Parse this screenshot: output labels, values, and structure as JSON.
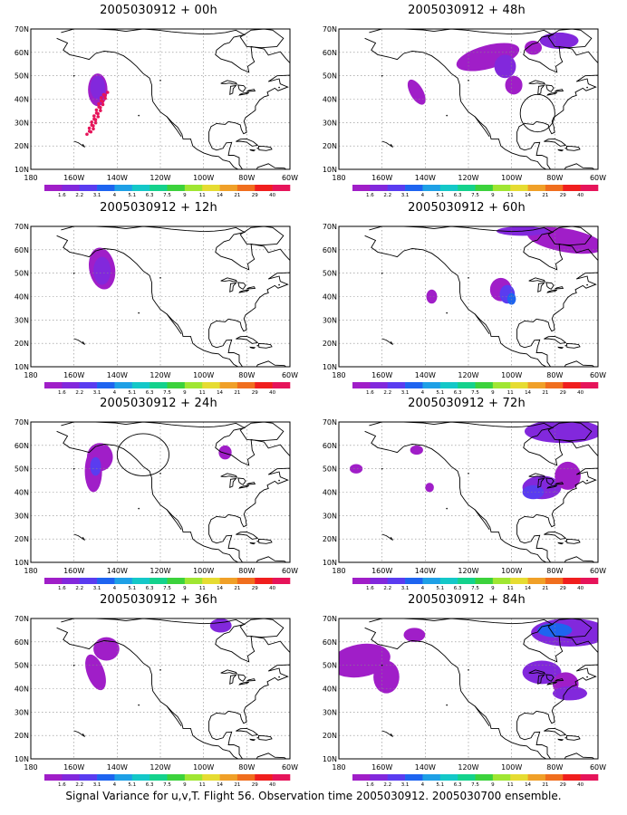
{
  "map": {
    "lat_labels": [
      "10N",
      "20N",
      "30N",
      "40N",
      "50N",
      "60N",
      "70N"
    ],
    "lon_labels": [
      "180",
      "160W",
      "140W",
      "120W",
      "100W",
      "80W",
      "60W"
    ]
  },
  "colorbar": {
    "labels": [
      "1.6",
      "2.2",
      "3.1",
      "4",
      "5.1",
      "6.3",
      "7.5",
      "9",
      "11",
      "14",
      "21",
      "29",
      "40"
    ],
    "colors": [
      "#a01ec8",
      "#8228dc",
      "#5a3cf0",
      "#1e64f0",
      "#1ea0e6",
      "#14c8c8",
      "#14d28c",
      "#3cd23c",
      "#a0e632",
      "#e6dc32",
      "#f0a028",
      "#f06e1e",
      "#f01e1e",
      "#e6145a"
    ]
  },
  "panels": [
    {
      "title": "2005030912 + 00h"
    },
    {
      "title": "2005030912 + 48h"
    },
    {
      "title": "2005030912 + 12h"
    },
    {
      "title": "2005030912 + 60h"
    },
    {
      "title": "2005030912 + 24h"
    },
    {
      "title": "2005030912 + 72h"
    },
    {
      "title": "2005030912 + 36h"
    },
    {
      "title": "2005030912 + 84h"
    }
  ],
  "caption": "Signal Variance for u,v,T. Flight 56. Observation time 2005030912. 2005030700 ensemble."
}
